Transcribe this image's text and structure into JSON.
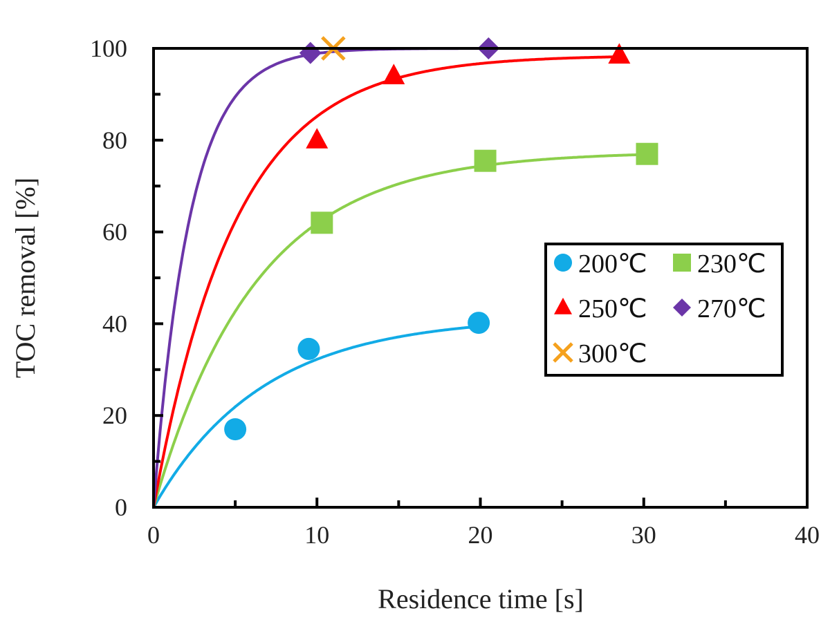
{
  "chart_data": {
    "type": "scatter",
    "title": "",
    "xlabel": "Residence time [s]",
    "ylabel": "TOC removal [%]",
    "xlim": [
      0,
      40
    ],
    "ylim": [
      0,
      100
    ],
    "xticks": [
      "0",
      "10",
      "20",
      "30",
      "40"
    ],
    "xtick_values": [
      0,
      10,
      20,
      30,
      40
    ],
    "yticks": [
      "0",
      "20",
      "40",
      "60",
      "80",
      "100"
    ],
    "ytick_values": [
      0,
      20,
      40,
      60,
      80,
      100
    ],
    "grid": false,
    "legend_position": "center-right",
    "series": [
      {
        "name": "200℃",
        "color": "#12ABE6",
        "marker": "circle",
        "points": [
          [
            5.0,
            17.0
          ],
          [
            9.5,
            34.5
          ],
          [
            19.9,
            40.2
          ]
        ],
        "fit_k": 0.15,
        "fit_max": 41.5
      },
      {
        "name": "230℃",
        "color": "#8CCF4B",
        "marker": "square",
        "points": [
          [
            10.3,
            62.0
          ],
          [
            20.3,
            75.5
          ],
          [
            30.2,
            77.0
          ]
        ],
        "fit_k": 0.16,
        "fit_max": 77.5
      },
      {
        "name": "250℃",
        "color": "#FF0000",
        "marker": "triangle",
        "points": [
          [
            10.0,
            80.0
          ],
          [
            14.7,
            94.0
          ],
          [
            28.5,
            98.5
          ]
        ],
        "fit_k": 0.2,
        "fit_max": 98.5
      },
      {
        "name": "270℃",
        "color": "#6B35A8",
        "marker": "diamond",
        "points": [
          [
            9.6,
            99.0
          ],
          [
            20.5,
            100.0
          ]
        ],
        "fit_k": 0.45,
        "fit_max": 100.0
      },
      {
        "name": "300℃",
        "color": "#F5A11E",
        "marker": "x",
        "points": [
          [
            11.0,
            100.0
          ]
        ]
      }
    ]
  }
}
